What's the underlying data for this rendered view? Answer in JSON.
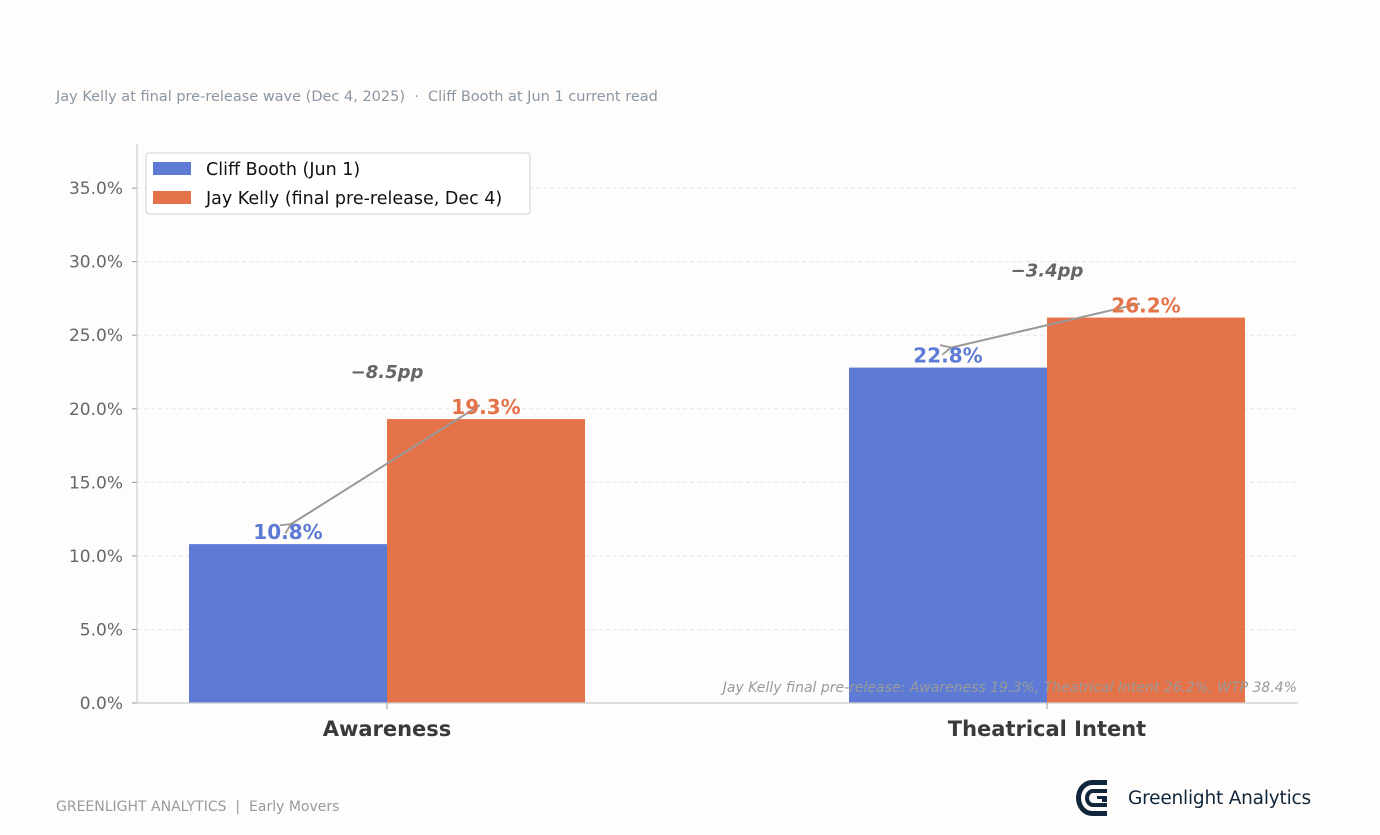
{
  "subtitle": "Jay Kelly at final pre-release wave (Dec 4, 2025)  ·  Cliff Booth at Jun 1 current read",
  "footer": "GREENLIGHT ANALYTICS  |  Early Movers",
  "brand": {
    "name": "Greenlight Analytics",
    "logo": "greenlight-g-logo-icon"
  },
  "colors": {
    "cliff": "#5d7bd5",
    "jay": "#e5734a",
    "arrow": "#999999",
    "delta_text": "#666666",
    "axis": "#666666",
    "grid": "#e6e6e6",
    "brand": "#10263b"
  },
  "chart_data": {
    "type": "bar",
    "categories": [
      "Awareness",
      "Theatrical Intent"
    ],
    "series": [
      {
        "name": "Cliff Booth (Jun 1)",
        "values": [
          10.8,
          22.8
        ],
        "labels": [
          "10.8%",
          "22.8%"
        ]
      },
      {
        "name": "Jay Kelly (final pre-release, Dec 4)",
        "values": [
          19.3,
          26.2
        ],
        "labels": [
          "19.3%",
          "26.2%"
        ]
      }
    ],
    "deltas": [
      "−8.5pp",
      "−3.4pp"
    ],
    "ylim": [
      0,
      38
    ],
    "yticks": [
      0,
      5,
      10,
      15,
      20,
      25,
      30,
      35
    ],
    "ytick_labels": [
      "0.0%",
      "5.0%",
      "10.0%",
      "15.0%",
      "20.0%",
      "25.0%",
      "30.0%",
      "35.0%"
    ],
    "grid": true,
    "legend_position": "top-left",
    "footnote": "Jay Kelly final pre-release: Awareness 19.3%, Theatrical Intent 26.2%, WTP 38.4%"
  }
}
